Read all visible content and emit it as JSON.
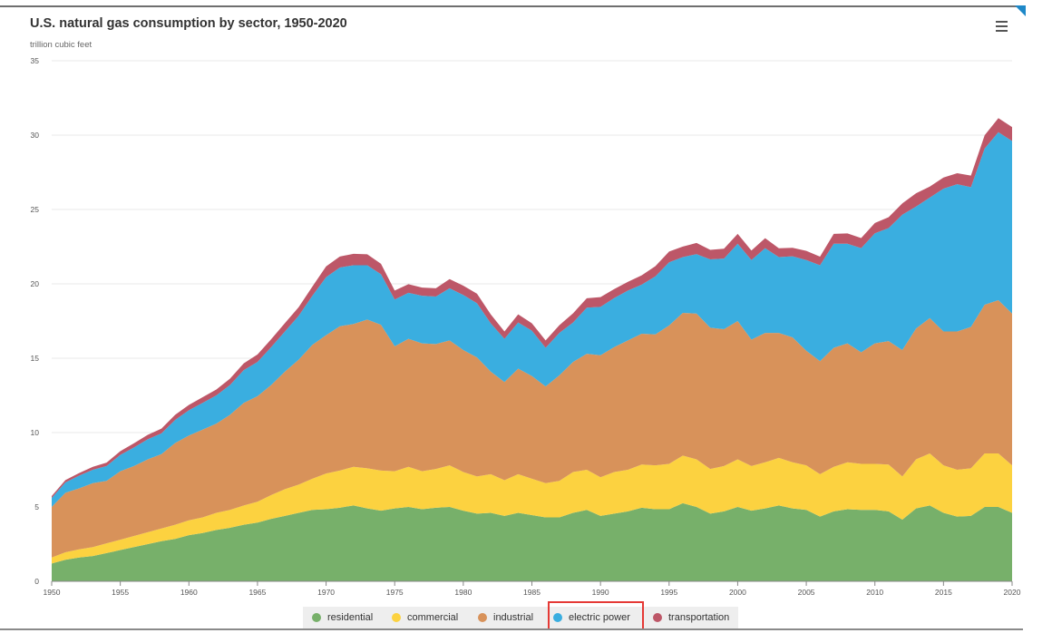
{
  "header": {
    "title": "U.S. natural gas consumption by sector, 1950-2020",
    "subtitle": "trillion cubic feet",
    "menu_icon": "hamburger-menu-icon"
  },
  "legend_items": [
    {
      "label": "residential",
      "color": "#77b06a"
    },
    {
      "label": "commercial",
      "color": "#fcd240"
    },
    {
      "label": "industrial",
      "color": "#d8925a"
    },
    {
      "label": "electric power",
      "color": "#3aaee0"
    },
    {
      "label": "transportation",
      "color": "#bd5768"
    }
  ],
  "chart_data": {
    "type": "area",
    "stacked": true,
    "title": "U.S. natural gas consumption by sector, 1950-2020",
    "subtitle": "trillion cubic feet",
    "xlabel": "",
    "ylabel": "",
    "xlim": [
      1950,
      2020
    ],
    "ylim": [
      0,
      35
    ],
    "yticks": [
      0,
      5,
      10,
      15,
      20,
      25,
      30,
      35
    ],
    "xticks": [
      1950,
      1955,
      1960,
      1965,
      1970,
      1975,
      1980,
      1985,
      1990,
      1995,
      2000,
      2005,
      2010,
      2015,
      2020
    ],
    "grid": "horizontal",
    "legend_position": "bottom",
    "x": [
      1950,
      1951,
      1952,
      1953,
      1954,
      1955,
      1956,
      1957,
      1958,
      1959,
      1960,
      1961,
      1962,
      1963,
      1964,
      1965,
      1966,
      1967,
      1968,
      1969,
      1970,
      1971,
      1972,
      1973,
      1974,
      1975,
      1976,
      1977,
      1978,
      1979,
      1980,
      1981,
      1982,
      1983,
      1984,
      1985,
      1986,
      1987,
      1988,
      1989,
      1990,
      1991,
      1992,
      1993,
      1994,
      1995,
      1996,
      1997,
      1998,
      1999,
      2000,
      2001,
      2002,
      2003,
      2004,
      2005,
      2006,
      2007,
      2008,
      2009,
      2010,
      2011,
      2012,
      2013,
      2014,
      2015,
      2016,
      2017,
      2018,
      2019,
      2020
    ],
    "series": [
      {
        "name": "residential",
        "color": "#77b06a",
        "values": [
          1.2,
          1.45,
          1.6,
          1.7,
          1.9,
          2.1,
          2.3,
          2.5,
          2.7,
          2.85,
          3.1,
          3.25,
          3.45,
          3.6,
          3.8,
          3.95,
          4.2,
          4.4,
          4.6,
          4.8,
          4.85,
          4.95,
          5.1,
          4.9,
          4.75,
          4.9,
          5.0,
          4.85,
          4.95,
          5.0,
          4.75,
          4.55,
          4.6,
          4.4,
          4.6,
          4.45,
          4.3,
          4.3,
          4.6,
          4.8,
          4.4,
          4.55,
          4.7,
          4.95,
          4.85,
          4.85,
          5.25,
          5.0,
          4.55,
          4.7,
          5.0,
          4.75,
          4.9,
          5.1,
          4.9,
          4.8,
          4.35,
          4.7,
          4.85,
          4.8,
          4.8,
          4.7,
          4.15,
          4.9,
          5.1,
          4.6,
          4.35,
          4.4,
          5.0,
          5.0,
          4.6
        ]
      },
      {
        "name": "commercial",
        "color": "#fcd240",
        "values": [
          0.4,
          0.5,
          0.55,
          0.6,
          0.65,
          0.7,
          0.75,
          0.8,
          0.85,
          0.95,
          1.0,
          1.05,
          1.15,
          1.2,
          1.3,
          1.4,
          1.6,
          1.8,
          1.9,
          2.1,
          2.4,
          2.5,
          2.6,
          2.7,
          2.7,
          2.5,
          2.7,
          2.55,
          2.6,
          2.8,
          2.6,
          2.5,
          2.6,
          2.4,
          2.6,
          2.45,
          2.3,
          2.45,
          2.75,
          2.7,
          2.6,
          2.8,
          2.8,
          2.9,
          2.95,
          3.05,
          3.2,
          3.2,
          3.0,
          3.05,
          3.2,
          3.0,
          3.1,
          3.2,
          3.1,
          3.0,
          2.85,
          3.0,
          3.15,
          3.1,
          3.1,
          3.15,
          2.9,
          3.3,
          3.5,
          3.2,
          3.15,
          3.2,
          3.6,
          3.6,
          3.2
        ]
      },
      {
        "name": "industrial",
        "color": "#d8925a",
        "values": [
          3.4,
          4.0,
          4.1,
          4.3,
          4.2,
          4.6,
          4.7,
          4.9,
          5.0,
          5.5,
          5.7,
          5.9,
          6.0,
          6.4,
          6.9,
          7.1,
          7.4,
          7.9,
          8.4,
          9.0,
          9.3,
          9.7,
          9.6,
          10.0,
          9.8,
          8.4,
          8.6,
          8.6,
          8.4,
          8.4,
          8.2,
          8.0,
          6.9,
          6.6,
          7.1,
          6.9,
          6.5,
          7.1,
          7.4,
          7.8,
          8.2,
          8.4,
          8.7,
          8.8,
          8.8,
          9.3,
          9.6,
          9.8,
          9.5,
          9.2,
          9.3,
          8.5,
          8.7,
          8.4,
          8.4,
          7.7,
          7.6,
          8.0,
          8.0,
          7.5,
          8.1,
          8.3,
          8.5,
          8.8,
          9.1,
          9.0,
          9.3,
          9.5,
          10.0,
          10.3,
          10.2
        ]
      },
      {
        "name": "electric power",
        "color": "#3aaee0",
        "values": [
          0.6,
          0.7,
          0.85,
          0.9,
          1.0,
          1.1,
          1.25,
          1.35,
          1.4,
          1.55,
          1.7,
          1.8,
          1.9,
          2.0,
          2.2,
          2.3,
          2.55,
          2.7,
          2.95,
          3.3,
          3.9,
          3.95,
          3.95,
          3.65,
          3.4,
          3.15,
          3.1,
          3.2,
          3.2,
          3.5,
          3.7,
          3.65,
          3.25,
          2.9,
          3.1,
          3.05,
          2.6,
          2.85,
          2.65,
          3.1,
          3.25,
          3.3,
          3.35,
          3.3,
          3.9,
          4.25,
          3.75,
          4.0,
          4.6,
          4.75,
          5.2,
          5.35,
          5.7,
          5.1,
          5.45,
          6.1,
          6.45,
          7.0,
          6.7,
          7.0,
          7.4,
          7.6,
          9.1,
          8.2,
          8.1,
          9.6,
          9.9,
          9.4,
          10.5,
          11.3,
          11.6
        ]
      },
      {
        "name": "transportation",
        "color": "#bd5768",
        "values": [
          0.13,
          0.16,
          0.18,
          0.2,
          0.23,
          0.25,
          0.28,
          0.3,
          0.32,
          0.35,
          0.36,
          0.38,
          0.4,
          0.43,
          0.46,
          0.5,
          0.53,
          0.56,
          0.58,
          0.62,
          0.72,
          0.74,
          0.77,
          0.74,
          0.7,
          0.6,
          0.58,
          0.55,
          0.55,
          0.62,
          0.63,
          0.64,
          0.6,
          0.5,
          0.55,
          0.5,
          0.5,
          0.52,
          0.62,
          0.63,
          0.66,
          0.6,
          0.59,
          0.62,
          0.69,
          0.72,
          0.71,
          0.75,
          0.64,
          0.66,
          0.66,
          0.64,
          0.67,
          0.59,
          0.57,
          0.62,
          0.58,
          0.66,
          0.69,
          0.68,
          0.69,
          0.73,
          0.76,
          0.89,
          0.74,
          0.75,
          0.74,
          0.78,
          0.89,
          0.94,
          0.94
        ]
      }
    ]
  }
}
